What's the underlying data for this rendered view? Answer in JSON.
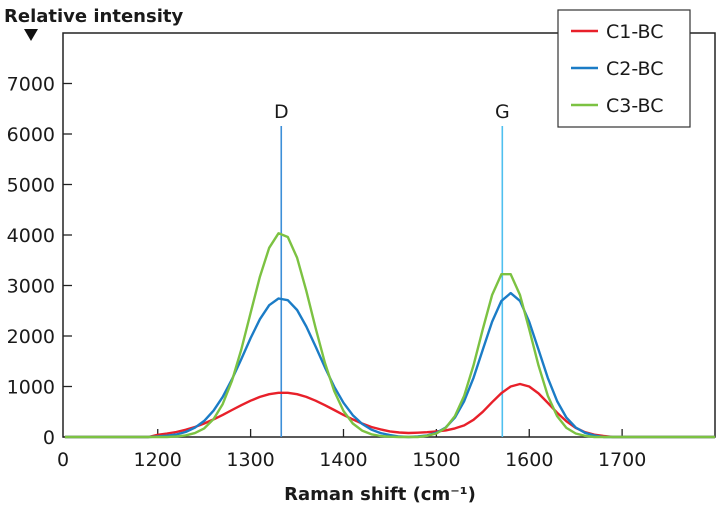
{
  "chart_data": {
    "type": "line",
    "title": "",
    "xlabel": "Raman shift (cm⁻¹)",
    "ylabel": "Relative intensity",
    "xlim": [
      1098,
      1800
    ],
    "ylim": [
      0,
      8000
    ],
    "x_axis_break_label": "0",
    "x_ticks": [
      1200,
      1300,
      1400,
      1500,
      1600,
      1700
    ],
    "x_tick_labels": [
      "1200",
      "1300",
      "1400",
      "1500",
      "1600",
      "1700"
    ],
    "y_ticks": [
      0,
      1000,
      2000,
      3000,
      4000,
      5000,
      6000,
      7000
    ],
    "y_tick_labels": [
      "0",
      "1000",
      "2000",
      "3000",
      "4000",
      "5000",
      "6000",
      "7000"
    ],
    "grid": false,
    "legend_position": "top-right",
    "annotations": [
      {
        "label": "D",
        "x": 1333,
        "color": "#3d8fd8"
      },
      {
        "label": "G",
        "x": 1571,
        "color": "#4fc0ef"
      }
    ],
    "x": [
      1100,
      1110,
      1120,
      1130,
      1140,
      1150,
      1160,
      1170,
      1180,
      1190,
      1200,
      1210,
      1220,
      1230,
      1240,
      1250,
      1260,
      1270,
      1280,
      1290,
      1300,
      1310,
      1320,
      1330,
      1340,
      1350,
      1360,
      1370,
      1380,
      1390,
      1400,
      1410,
      1420,
      1430,
      1440,
      1450,
      1460,
      1470,
      1480,
      1490,
      1500,
      1510,
      1520,
      1530,
      1540,
      1550,
      1560,
      1570,
      1580,
      1590,
      1600,
      1610,
      1620,
      1630,
      1640,
      1650,
      1660,
      1670,
      1680,
      1690,
      1700,
      1710,
      1720,
      1730,
      1740,
      1750,
      1760,
      1770,
      1780,
      1790,
      1800
    ],
    "series": [
      {
        "name": "C1-BC",
        "color": "#e8202a",
        "values": [
          0,
          0,
          0,
          0,
          0,
          0,
          0,
          0,
          0,
          0,
          43,
          67,
          99,
          143,
          198,
          267,
          348,
          437,
          534,
          630,
          719,
          794,
          847,
          876,
          876,
          847,
          794,
          719,
          630,
          534,
          437,
          348,
          267,
          198,
          150,
          110,
          90,
          80,
          85,
          95,
          110,
          130,
          170,
          230,
          340,
          500,
          690,
          870,
          1000,
          1050,
          1000,
          864,
          676,
          481,
          310,
          181,
          96,
          46,
          20,
          0,
          0,
          0,
          0,
          0,
          0,
          0,
          0,
          0,
          0,
          0,
          0
        ]
      },
      {
        "name": "C2-BC",
        "color": "#1b7cc6",
        "values": [
          0,
          0,
          0,
          0,
          0,
          0,
          0,
          0,
          0,
          0,
          11,
          25,
          50,
          99,
          184,
          319,
          520,
          795,
          1144,
          1543,
          1958,
          2332,
          2610,
          2742,
          2709,
          2514,
          2189,
          1793,
          1381,
          996,
          677,
          432,
          259,
          146,
          77,
          38,
          10,
          0,
          10,
          31,
          83,
          188,
          385,
          710,
          1171,
          1730,
          2283,
          2696,
          2850,
          2696,
          2283,
          1730,
          1171,
          710,
          385,
          188,
          83,
          31,
          0,
          0,
          0,
          0,
          0,
          0,
          0,
          0,
          0,
          0,
          0,
          0,
          0
        ]
      },
      {
        "name": "C3-BC",
        "color": "#7cc242",
        "values": [
          0,
          0,
          0,
          0,
          0,
          0,
          0,
          0,
          0,
          0,
          0,
          0,
          11,
          31,
          77,
          170,
          352,
          652,
          1114,
          1733,
          2458,
          3175,
          3746,
          4034,
          3961,
          3548,
          2896,
          2159,
          1470,
          911,
          514,
          267,
          126,
          53,
          20,
          5,
          0,
          0,
          0,
          23,
          69,
          180,
          413,
          817,
          1417,
          2135,
          2811,
          3224,
          3224,
          2811,
          2135,
          1417,
          817,
          413,
          180,
          69,
          23,
          0,
          0,
          0,
          0,
          0,
          0,
          0,
          0,
          0,
          0,
          0,
          0,
          0,
          0
        ]
      }
    ]
  }
}
